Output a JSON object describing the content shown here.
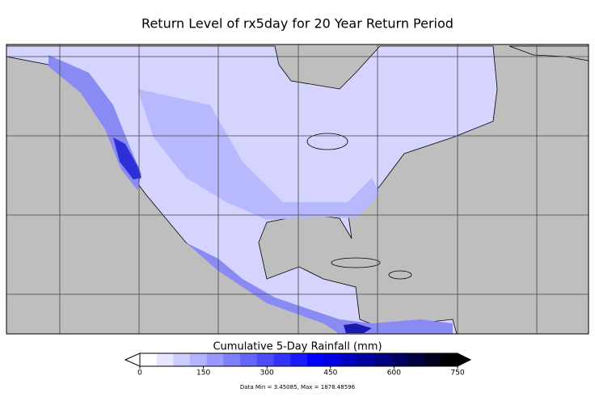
{
  "title": "Return Level of rx5day for 20 Year Return Period",
  "colorbar": {
    "label": "Cumulative 5-Day Rainfall  (mm)",
    "range": [
      0,
      750
    ],
    "ticks": [
      0,
      150,
      300,
      450,
      600,
      750
    ],
    "colors": [
      "#ffffff",
      "#e6e6ff",
      "#ccccff",
      "#b3b3ff",
      "#9999ff",
      "#8080ff",
      "#6666ff",
      "#4d4dff",
      "#3333ff",
      "#1a1aff",
      "#0000ff",
      "#0000e0",
      "#0000c0",
      "#0000a0",
      "#000080",
      "#000060",
      "#000040",
      "#000020",
      "#000000"
    ]
  },
  "data_note": "Data Min = 3.45085, Max = 1878.48596"
}
